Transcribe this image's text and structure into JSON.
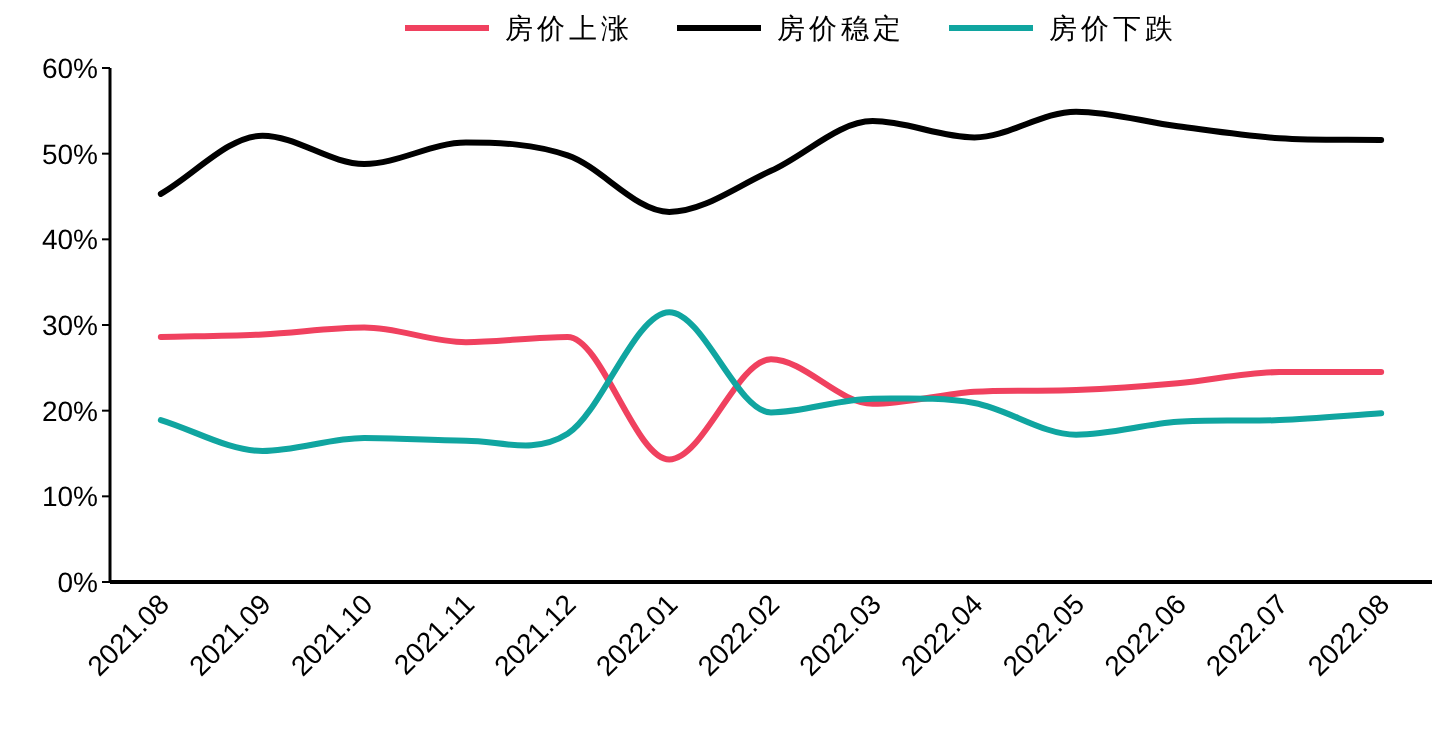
{
  "chart_data": {
    "type": "line",
    "categories": [
      "2021.08",
      "2021.09",
      "2021.10",
      "2021.11",
      "2021.12",
      "2022.01",
      "2022.02",
      "2022.03",
      "2022.04",
      "2022.05",
      "2022.06",
      "2022.07",
      "2022.08"
    ],
    "series": [
      {
        "name": "房价上涨",
        "color": "#f0415f",
        "values": [
          28.6,
          28.9,
          29.7,
          28.0,
          28.6,
          14.3,
          26.0,
          20.8,
          22.2,
          22.4,
          23.2,
          24.5,
          24.5
        ]
      },
      {
        "name": "房价稳定",
        "color": "#000000",
        "values": [
          45.3,
          52.1,
          48.8,
          51.3,
          49.8,
          43.2,
          48.0,
          53.8,
          51.9,
          54.9,
          53.2,
          51.8,
          51.6
        ]
      },
      {
        "name": "房价下跌",
        "color": "#10a5a0",
        "values": [
          18.9,
          15.3,
          16.8,
          16.5,
          17.3,
          31.5,
          19.8,
          21.4,
          20.9,
          17.2,
          18.7,
          18.9,
          19.7
        ]
      }
    ],
    "ylim": [
      0,
      60
    ],
    "yticks": [
      {
        "value": 0,
        "label": "0%"
      },
      {
        "value": 10,
        "label": "10%"
      },
      {
        "value": 20,
        "label": "20%"
      },
      {
        "value": 30,
        "label": "30%"
      },
      {
        "value": 40,
        "label": "40%"
      },
      {
        "value": 50,
        "label": "50%"
      },
      {
        "value": 60,
        "label": "60%"
      }
    ],
    "legend": "top",
    "grid": false
  }
}
